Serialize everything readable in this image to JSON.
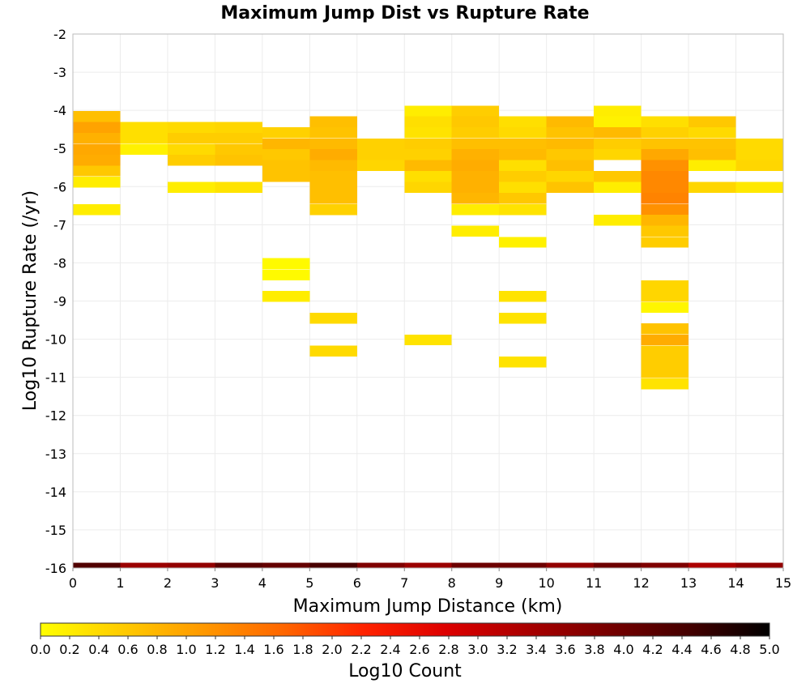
{
  "chart_data": {
    "type": "heatmap",
    "title": "Maximum Jump Dist vs Rupture Rate",
    "xlabel": "Maximum Jump Distance (km)",
    "ylabel": "Log10 Rupture Rate (/yr)",
    "xlim": [
      0,
      15
    ],
    "ylim": [
      -16,
      -2
    ],
    "x_ticks": [
      0,
      1,
      2,
      3,
      4,
      5,
      6,
      7,
      8,
      9,
      10,
      11,
      12,
      13,
      14,
      15
    ],
    "y_ticks": [
      -16,
      -15,
      -14,
      -13,
      -12,
      -11,
      -10,
      -9,
      -8,
      -7,
      -6,
      -5,
      -4,
      -3,
      -2
    ],
    "bin_width_x": 1,
    "bin_height_y": 0.286,
    "grid": true,
    "colorbar": {
      "label": "Log10 Count",
      "range": [
        0,
        5
      ],
      "ticks": [
        "0.0",
        "0.2",
        "0.4",
        "0.6",
        "0.8",
        "1.0",
        "1.2",
        "1.4",
        "1.6",
        "1.8",
        "2.0",
        "2.2",
        "2.4",
        "2.6",
        "2.8",
        "3.0",
        "3.2",
        "3.4",
        "3.6",
        "3.8",
        "4.0",
        "4.2",
        "4.4",
        "4.6",
        "4.8",
        "5.0"
      ],
      "colors": [
        "#ffff00",
        "#ffcc00",
        "#ff9900",
        "#ff6600",
        "#ff2200",
        "#dd0000",
        "#aa0000",
        "#770000",
        "#440000",
        "#000000"
      ]
    },
    "cells": [
      [
        0,
        -4.16,
        0.7
      ],
      [
        0,
        -4.45,
        1.0
      ],
      [
        0,
        -4.73,
        0.85
      ],
      [
        0,
        -5.02,
        0.95
      ],
      [
        0,
        -5.31,
        0.9
      ],
      [
        0,
        -5.59,
        0.6
      ],
      [
        0,
        -5.88,
        0.2
      ],
      [
        0,
        -6.6,
        0.2
      ],
      [
        1,
        -4.45,
        0.35
      ],
      [
        1,
        -4.73,
        0.35
      ],
      [
        1,
        -5.02,
        0.15
      ],
      [
        2,
        -4.45,
        0.4
      ],
      [
        2,
        -4.73,
        0.55
      ],
      [
        2,
        -5.02,
        0.4
      ],
      [
        2,
        -5.31,
        0.55
      ],
      [
        2,
        -6.02,
        0.2
      ],
      [
        3,
        -4.45,
        0.45
      ],
      [
        3,
        -4.73,
        0.55
      ],
      [
        3,
        -5.02,
        0.6
      ],
      [
        3,
        -5.31,
        0.65
      ],
      [
        3,
        -6.02,
        0.3
      ],
      [
        4,
        -4.59,
        0.5
      ],
      [
        4,
        -4.88,
        0.8
      ],
      [
        4,
        -5.16,
        0.6
      ],
      [
        4,
        -5.45,
        0.65
      ],
      [
        4,
        -5.73,
        0.65
      ],
      [
        4,
        -8.02,
        0.05
      ],
      [
        4,
        -8.31,
        0.05
      ],
      [
        4,
        -8.88,
        0.2
      ],
      [
        5,
        -4.3,
        0.7
      ],
      [
        5,
        -4.59,
        0.65
      ],
      [
        5,
        -4.88,
        0.75
      ],
      [
        5,
        -5.16,
        0.9
      ],
      [
        5,
        -5.45,
        0.75
      ],
      [
        5,
        -5.73,
        0.7
      ],
      [
        5,
        -6.02,
        0.7
      ],
      [
        5,
        -6.31,
        0.7
      ],
      [
        5,
        -6.6,
        0.5
      ],
      [
        5,
        -9.45,
        0.4
      ],
      [
        5,
        -10.31,
        0.4
      ],
      [
        6,
        -4.88,
        0.5
      ],
      [
        6,
        -5.16,
        0.5
      ],
      [
        6,
        -5.45,
        0.45
      ],
      [
        7,
        -4.02,
        0.2
      ],
      [
        7,
        -4.3,
        0.35
      ],
      [
        7,
        -4.59,
        0.3
      ],
      [
        7,
        -4.88,
        0.55
      ],
      [
        7,
        -5.16,
        0.5
      ],
      [
        7,
        -5.45,
        0.75
      ],
      [
        7,
        -5.73,
        0.35
      ],
      [
        7,
        -6.02,
        0.45
      ],
      [
        7,
        -10.02,
        0.3
      ],
      [
        8,
        -4.02,
        0.55
      ],
      [
        8,
        -4.3,
        0.6
      ],
      [
        8,
        -4.59,
        0.55
      ],
      [
        8,
        -4.88,
        0.7
      ],
      [
        8,
        -5.16,
        0.85
      ],
      [
        8,
        -5.45,
        0.9
      ],
      [
        8,
        -5.73,
        0.85
      ],
      [
        8,
        -6.02,
        0.85
      ],
      [
        8,
        -6.31,
        0.8
      ],
      [
        8,
        -6.6,
        0.2
      ],
      [
        8,
        -7.17,
        0.2
      ],
      [
        9,
        -4.3,
        0.35
      ],
      [
        9,
        -4.59,
        0.4
      ],
      [
        9,
        -4.88,
        0.7
      ],
      [
        9,
        -5.16,
        0.75
      ],
      [
        9,
        -5.45,
        0.35
      ],
      [
        9,
        -5.73,
        0.55
      ],
      [
        9,
        -6.02,
        0.35
      ],
      [
        9,
        -6.31,
        0.6
      ],
      [
        9,
        -6.6,
        0.3
      ],
      [
        9,
        -7.46,
        0.15
      ],
      [
        9,
        -8.88,
        0.3
      ],
      [
        9,
        -9.45,
        0.3
      ],
      [
        9,
        -10.6,
        0.3
      ],
      [
        10,
        -4.3,
        0.75
      ],
      [
        10,
        -4.59,
        0.65
      ],
      [
        10,
        -4.88,
        0.75
      ],
      [
        10,
        -5.16,
        0.6
      ],
      [
        10,
        -5.45,
        0.7
      ],
      [
        10,
        -5.73,
        0.45
      ],
      [
        10,
        -6.02,
        0.65
      ],
      [
        11,
        -4.02,
        0.2
      ],
      [
        11,
        -4.3,
        0.15
      ],
      [
        11,
        -4.59,
        0.75
      ],
      [
        11,
        -4.88,
        0.55
      ],
      [
        11,
        -5.16,
        0.45
      ],
      [
        11,
        -5.73,
        0.6
      ],
      [
        11,
        -6.02,
        0.2
      ],
      [
        11,
        -6.88,
        0.2
      ],
      [
        12,
        -4.3,
        0.35
      ],
      [
        12,
        -4.59,
        0.5
      ],
      [
        12,
        -4.88,
        0.65
      ],
      [
        12,
        -5.16,
        0.95
      ],
      [
        12,
        -5.45,
        1.2
      ],
      [
        12,
        -5.73,
        1.3
      ],
      [
        12,
        -6.02,
        1.3
      ],
      [
        12,
        -6.31,
        1.35
      ],
      [
        12,
        -6.6,
        1.2
      ],
      [
        12,
        -6.88,
        0.8
      ],
      [
        12,
        -7.17,
        0.6
      ],
      [
        12,
        -7.46,
        0.55
      ],
      [
        12,
        -8.6,
        0.45
      ],
      [
        12,
        -8.88,
        0.45
      ],
      [
        12,
        -9.17,
        0.1
      ],
      [
        12,
        -9.73,
        0.65
      ],
      [
        12,
        -10.02,
        0.9
      ],
      [
        12,
        -10.31,
        0.55
      ],
      [
        12,
        -10.6,
        0.55
      ],
      [
        12,
        -10.88,
        0.55
      ],
      [
        12,
        -11.17,
        0.3
      ],
      [
        13,
        -4.3,
        0.6
      ],
      [
        13,
        -4.59,
        0.4
      ],
      [
        13,
        -4.88,
        0.65
      ],
      [
        13,
        -5.16,
        0.7
      ],
      [
        13,
        -5.45,
        0.2
      ],
      [
        13,
        -6.02,
        0.45
      ],
      [
        14,
        -4.88,
        0.4
      ],
      [
        14,
        -5.16,
        0.4
      ],
      [
        14,
        -5.45,
        0.45
      ],
      [
        14,
        -6.02,
        0.25
      ],
      [
        0,
        -16,
        4.3
      ],
      [
        1,
        -16,
        3.5
      ],
      [
        2,
        -16,
        3.6
      ],
      [
        3,
        -16,
        4.2
      ],
      [
        4,
        -16,
        4.1
      ],
      [
        5,
        -16,
        4.4
      ],
      [
        6,
        -16,
        3.8
      ],
      [
        7,
        -16,
        3.5
      ],
      [
        8,
        -16,
        4.0
      ],
      [
        9,
        -16,
        4.0
      ],
      [
        10,
        -16,
        3.6
      ],
      [
        11,
        -16,
        4.0
      ],
      [
        12,
        -16,
        3.8
      ],
      [
        13,
        -16,
        3.3
      ],
      [
        14,
        -16,
        3.6
      ]
    ]
  }
}
